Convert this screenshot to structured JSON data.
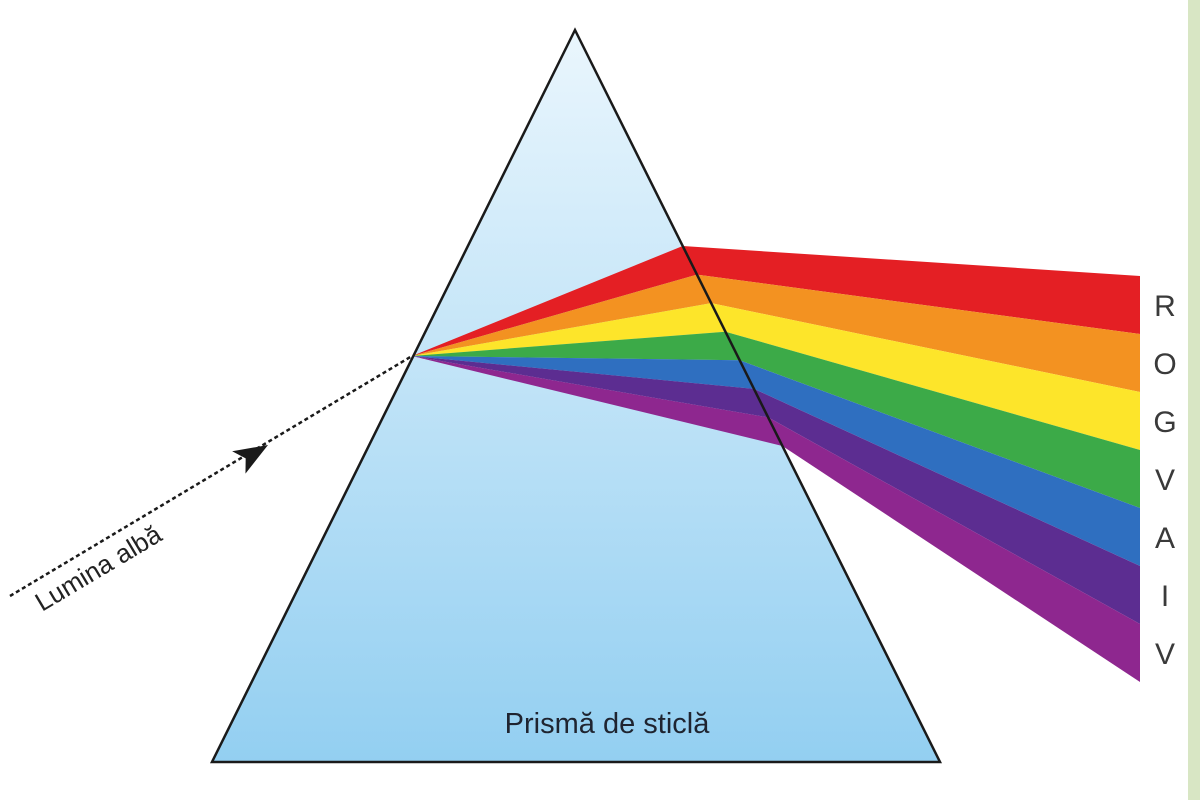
{
  "diagram": {
    "incoming_label": "Lumina albă",
    "prism_label": "Prismă de sticlă",
    "prism_gradient": {
      "top": "#eaf6fd",
      "bottom": "#93cff1"
    },
    "outline_color": "#1a1a1a",
    "bands": [
      {
        "letter": "R",
        "color": "#e41f24"
      },
      {
        "letter": "O",
        "color": "#f39221"
      },
      {
        "letter": "G",
        "color": "#fde52a"
      },
      {
        "letter": "V",
        "color": "#3caa48"
      },
      {
        "letter": "A",
        "color": "#2f6fc0"
      },
      {
        "letter": "I",
        "color": "#5c2d91"
      },
      {
        "letter": "V",
        "color": "#8e278f"
      }
    ]
  }
}
